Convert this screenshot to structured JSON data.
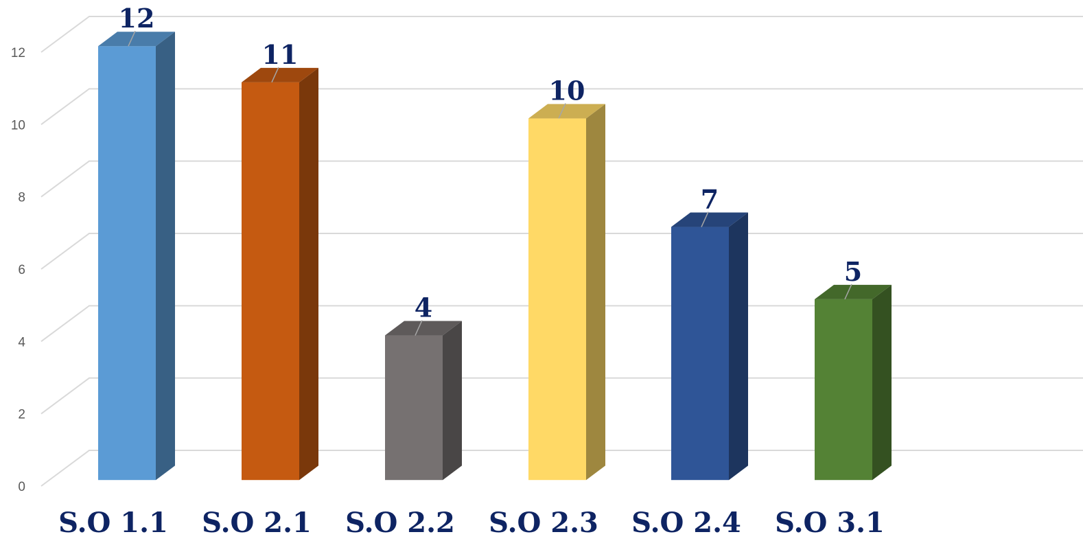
{
  "chart_data": {
    "type": "bar",
    "style": "3d-column",
    "title": "",
    "xlabel": "",
    "ylabel": "",
    "ylim": [
      0,
      12
    ],
    "y_ticks": [
      "0",
      "2",
      "4",
      "6",
      "8",
      "10",
      "12"
    ],
    "grid": true,
    "legend": "none",
    "categories": [
      "S.O 1.1",
      "S.O 2.1",
      "S.O 2.2",
      "S.O 2.3",
      "S.O 2.4",
      "S.O 3.1"
    ],
    "values": [
      12,
      11,
      4,
      10,
      7,
      5
    ],
    "data_labels": [
      "12",
      "11",
      "4",
      "10",
      "7",
      "5"
    ],
    "colors": [
      "#5b9bd5",
      "#c55a11",
      "#767171",
      "#ffd966",
      "#2f5597",
      "#548235"
    ],
    "label_color": "#0e2463"
  }
}
